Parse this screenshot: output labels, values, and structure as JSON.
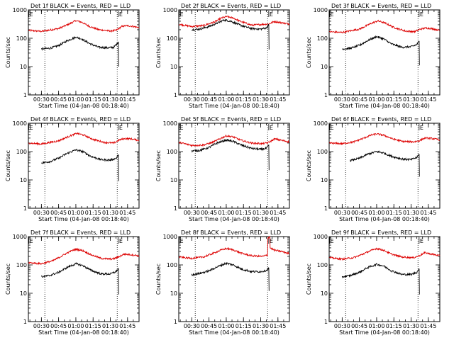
{
  "colors": {
    "events": "#000000",
    "lld": "#dd0000",
    "axis": "#000000"
  },
  "chart_data": {
    "type": "line",
    "grid": "3x3",
    "xlabel": "Start Time (04-Jan-08 00:18:40)",
    "ylabel": "Counts/sec",
    "x_tick_labels": [
      "00:30",
      "00:45",
      "01:00",
      "01:15",
      "01:30",
      "01:45"
    ],
    "x_tick_minutes": [
      30,
      45,
      60,
      75,
      90,
      105
    ],
    "xlim_minutes": [
      18.67,
      115
    ],
    "ylim": [
      1,
      1000
    ],
    "y_scale": "log",
    "y_tick_labels": [
      "1",
      "10",
      "100",
      "1000"
    ],
    "dotted_vlines_minutes": [
      33,
      96
    ],
    "markers": {
      "start": {
        "label": "E",
        "minute": 19
      },
      "end": {
        "label": "E",
        "minute": 97
      }
    },
    "panels": [
      {
        "title": "Det 1f BLACK = Events, RED = LLD",
        "lld": [
          [
            19,
            190
          ],
          [
            30,
            175
          ],
          [
            45,
            220
          ],
          [
            55,
            330
          ],
          [
            60,
            420
          ],
          [
            65,
            370
          ],
          [
            72,
            260
          ],
          [
            80,
            200
          ],
          [
            90,
            180
          ],
          [
            95,
            190
          ],
          [
            100,
            260
          ],
          [
            104,
            280
          ],
          [
            108,
            270
          ],
          [
            112,
            250
          ],
          [
            115,
            240
          ]
        ],
        "events": [
          [
            30,
            42
          ],
          [
            37,
            44
          ],
          [
            45,
            55
          ],
          [
            52,
            80
          ],
          [
            60,
            110
          ],
          [
            65,
            95
          ],
          [
            72,
            65
          ],
          [
            80,
            48
          ],
          [
            88,
            46
          ],
          [
            93,
            48
          ],
          [
            95.5,
            62
          ],
          [
            97,
            75
          ],
          [
            97.3,
            10
          ]
        ]
      },
      {
        "title": "Det 2f BLACK = Events, RED = LLD",
        "lld": [
          [
            19,
            310
          ],
          [
            25,
            280
          ],
          [
            30,
            260
          ],
          [
            40,
            280
          ],
          [
            50,
            380
          ],
          [
            56,
            520
          ],
          [
            60,
            580
          ],
          [
            66,
            520
          ],
          [
            72,
            400
          ],
          [
            82,
            290
          ],
          [
            92,
            310
          ],
          [
            97,
            320
          ],
          [
            102,
            390
          ],
          [
            107,
            360
          ],
          [
            112,
            330
          ],
          [
            115,
            320
          ]
        ],
        "events": [
          [
            30,
            200
          ],
          [
            37,
            210
          ],
          [
            45,
            260
          ],
          [
            52,
            340
          ],
          [
            58,
            440
          ],
          [
            64,
            400
          ],
          [
            72,
            290
          ],
          [
            82,
            220
          ],
          [
            90,
            210
          ],
          [
            95,
            230
          ],
          [
            97,
            300
          ],
          [
            97.3,
            40
          ]
        ]
      },
      {
        "title": "Det 3f BLACK = Events, RED = LLD",
        "lld": [
          [
            19,
            170
          ],
          [
            30,
            160
          ],
          [
            45,
            210
          ],
          [
            55,
            330
          ],
          [
            61,
            410
          ],
          [
            67,
            350
          ],
          [
            75,
            240
          ],
          [
            85,
            180
          ],
          [
            93,
            170
          ],
          [
            98,
            210
          ],
          [
            103,
            230
          ],
          [
            108,
            220
          ],
          [
            115,
            190
          ]
        ],
        "events": [
          [
            30,
            42
          ],
          [
            37,
            44
          ],
          [
            45,
            56
          ],
          [
            52,
            82
          ],
          [
            60,
            115
          ],
          [
            66,
            95
          ],
          [
            73,
            63
          ],
          [
            82,
            48
          ],
          [
            90,
            50
          ],
          [
            95,
            60
          ],
          [
            97,
            78
          ],
          [
            97.3,
            11
          ]
        ]
      },
      {
        "title": "Det 4f BLACK = Events, RED = LLD",
        "lld": [
          [
            19,
            200
          ],
          [
            30,
            185
          ],
          [
            45,
            240
          ],
          [
            55,
            360
          ],
          [
            61,
            440
          ],
          [
            67,
            380
          ],
          [
            75,
            270
          ],
          [
            85,
            210
          ],
          [
            93,
            200
          ],
          [
            98,
            260
          ],
          [
            103,
            290
          ],
          [
            108,
            280
          ],
          [
            115,
            250
          ]
        ],
        "events": [
          [
            30,
            40
          ],
          [
            37,
            44
          ],
          [
            45,
            58
          ],
          [
            52,
            85
          ],
          [
            60,
            115
          ],
          [
            66,
            100
          ],
          [
            73,
            68
          ],
          [
            82,
            52
          ],
          [
            90,
            50
          ],
          [
            95,
            58
          ],
          [
            97,
            75
          ],
          [
            97.3,
            9
          ]
        ]
      },
      {
        "title": "Det 5f BLACK = Events, RED = LLD",
        "lld": [
          [
            19,
            210
          ],
          [
            30,
            165
          ],
          [
            40,
            170
          ],
          [
            48,
            210
          ],
          [
            55,
            290
          ],
          [
            60,
            360
          ],
          [
            66,
            330
          ],
          [
            73,
            250
          ],
          [
            82,
            200
          ],
          [
            92,
            190
          ],
          [
            97,
            210
          ],
          [
            102,
            280
          ],
          [
            108,
            250
          ],
          [
            115,
            220
          ]
        ],
        "events": [
          [
            30,
            105
          ],
          [
            37,
            110
          ],
          [
            45,
            140
          ],
          [
            52,
            200
          ],
          [
            60,
            255
          ],
          [
            66,
            230
          ],
          [
            73,
            170
          ],
          [
            82,
            130
          ],
          [
            90,
            120
          ],
          [
            95,
            130
          ],
          [
            97,
            170
          ],
          [
            97.3,
            22
          ]
        ]
      },
      {
        "title": "Det 6f BLACK = Events, RED = LLD",
        "lld": [
          [
            19,
            200
          ],
          [
            30,
            190
          ],
          [
            40,
            220
          ],
          [
            48,
            290
          ],
          [
            55,
            380
          ],
          [
            60,
            420
          ],
          [
            66,
            380
          ],
          [
            73,
            290
          ],
          [
            82,
            230
          ],
          [
            92,
            220
          ],
          [
            97,
            240
          ],
          [
            102,
            300
          ],
          [
            108,
            290
          ],
          [
            115,
            260
          ]
        ],
        "events": [
          [
            37,
            48
          ],
          [
            45,
            58
          ],
          [
            52,
            80
          ],
          [
            60,
            100
          ],
          [
            66,
            90
          ],
          [
            73,
            68
          ],
          [
            82,
            55
          ],
          [
            90,
            52
          ],
          [
            95,
            62
          ],
          [
            97,
            80
          ],
          [
            97.3,
            13
          ]
        ]
      },
      {
        "title": "Det 7f BLACK = Events, RED = LLD",
        "lld": [
          [
            19,
            120
          ],
          [
            30,
            110
          ],
          [
            40,
            140
          ],
          [
            48,
            210
          ],
          [
            55,
            300
          ],
          [
            60,
            360
          ],
          [
            66,
            320
          ],
          [
            73,
            230
          ],
          [
            82,
            170
          ],
          [
            92,
            160
          ],
          [
            97,
            190
          ],
          [
            102,
            240
          ],
          [
            108,
            230
          ],
          [
            115,
            210
          ]
        ],
        "events": [
          [
            30,
            38
          ],
          [
            37,
            42
          ],
          [
            45,
            55
          ],
          [
            52,
            80
          ],
          [
            60,
            110
          ],
          [
            66,
            95
          ],
          [
            73,
            65
          ],
          [
            82,
            48
          ],
          [
            90,
            48
          ],
          [
            95,
            58
          ],
          [
            97,
            75
          ],
          [
            97.3,
            9
          ]
        ]
      },
      {
        "title": "Det 8f BLACK = Events, RED = LLD",
        "lld": [
          [
            19,
            190
          ],
          [
            30,
            170
          ],
          [
            40,
            190
          ],
          [
            48,
            250
          ],
          [
            55,
            330
          ],
          [
            60,
            380
          ],
          [
            66,
            340
          ],
          [
            73,
            260
          ],
          [
            82,
            210
          ],
          [
            92,
            200
          ],
          [
            95,
            220
          ],
          [
            96,
            210
          ],
          [
            96.2,
            900
          ],
          [
            98,
            1000
          ],
          [
            98.2,
            400
          ],
          [
            102,
            330
          ],
          [
            108,
            300
          ],
          [
            115,
            250
          ]
        ],
        "events": [
          [
            30,
            45
          ],
          [
            37,
            50
          ],
          [
            45,
            62
          ],
          [
            52,
            85
          ],
          [
            60,
            115
          ],
          [
            66,
            100
          ],
          [
            73,
            72
          ],
          [
            82,
            58
          ],
          [
            90,
            58
          ],
          [
            95,
            64
          ],
          [
            97,
            78
          ],
          [
            97.3,
            12
          ]
        ]
      },
      {
        "title": "Det 9f BLACK = Events, RED = LLD",
        "lld": [
          [
            19,
            180
          ],
          [
            30,
            160
          ],
          [
            40,
            180
          ],
          [
            48,
            240
          ],
          [
            55,
            320
          ],
          [
            60,
            380
          ],
          [
            66,
            330
          ],
          [
            73,
            240
          ],
          [
            82,
            190
          ],
          [
            92,
            180
          ],
          [
            97,
            210
          ],
          [
            102,
            270
          ],
          [
            108,
            240
          ],
          [
            115,
            210
          ]
        ],
        "events": [
          [
            30,
            38
          ],
          [
            37,
            42
          ],
          [
            45,
            55
          ],
          [
            52,
            80
          ],
          [
            60,
            105
          ],
          [
            66,
            92
          ],
          [
            73,
            62
          ],
          [
            82,
            46
          ],
          [
            90,
            46
          ],
          [
            95,
            55
          ],
          [
            97,
            72
          ],
          [
            97.3,
            9
          ]
        ]
      }
    ]
  }
}
